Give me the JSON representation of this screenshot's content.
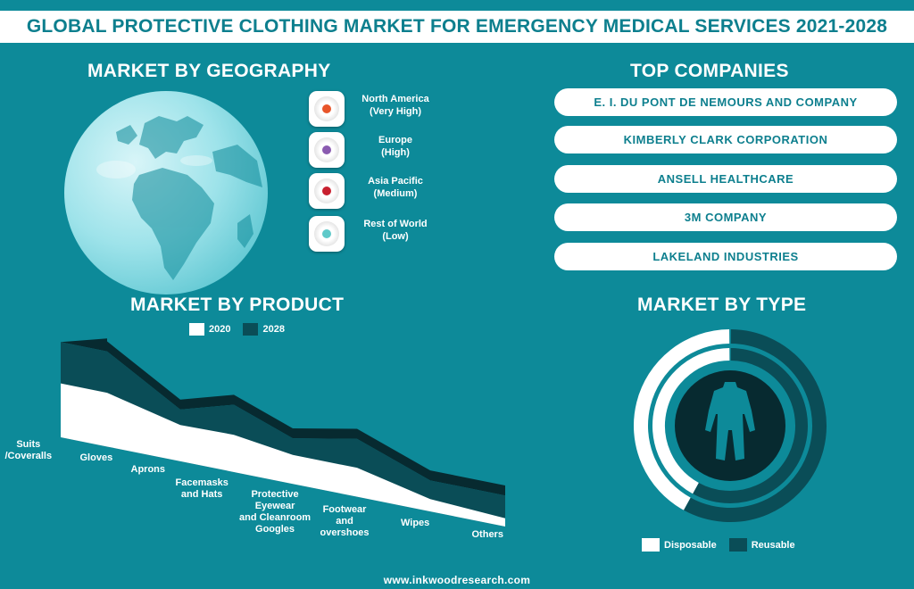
{
  "title": "GLOBAL PROTECTIVE CLOTHING MARKET FOR EMERGENCY MEDICAL SERVICES 2021-2028",
  "colors": {
    "background": "#0d8a99",
    "dark_teal": "#0a4d57",
    "darkest": "#072a30",
    "white": "#ffffff",
    "title_text": "#0d7f8e"
  },
  "geography": {
    "title": "MARKET BY GEOGRAPHY",
    "icon": "globe-icon",
    "regions": [
      {
        "name": "North America",
        "level": "(Very High)",
        "color": "#e8552a"
      },
      {
        "name": "Europe",
        "level": "(High)",
        "color": "#8a5bb0"
      },
      {
        "name": "Asia Pacific",
        "level": "(Medium)",
        "color": "#c8202f"
      },
      {
        "name": "Rest of World",
        "level": "(Low)",
        "color": "#5fc9c9"
      }
    ]
  },
  "companies": {
    "title": "TOP COMPANIES",
    "items": [
      "E. I. DU PONT DE NEMOURS AND COMPANY",
      "KIMBERLY CLARK CORPORATION",
      "ANSELL HEALTHCARE",
      "3M COMPANY",
      "LAKELAND INDUSTRIES"
    ]
  },
  "product": {
    "title": "MARKET BY PRODUCT",
    "legend": [
      "2020",
      "2028"
    ],
    "category_labels": [
      [
        "Suits",
        "/Coveralls"
      ],
      [
        "Gloves"
      ],
      [
        "Aprons"
      ],
      [
        "Facemasks",
        "and Hats"
      ],
      [
        "Protective",
        "Eyewear",
        "and Cleanroom",
        "Googles"
      ],
      [
        "Footwear",
        "and",
        "overshoes"
      ],
      [
        "Wipes"
      ],
      [
        "Others"
      ]
    ]
  },
  "type": {
    "title": "MARKET BY TYPE",
    "icon": "coverall-icon",
    "legend": [
      "Disposable",
      "Reusable"
    ]
  },
  "chart_data": [
    {
      "type": "area",
      "title": "MARKET BY PRODUCT",
      "categories": [
        "Suits /Coveralls",
        "Gloves",
        "Aprons",
        "Facemasks and Hats",
        "Protective Eyewear and Cleanroom Googles",
        "Footwear and overshoes",
        "Wipes",
        "Others"
      ],
      "series": [
        {
          "name": "2020",
          "values": [
            52,
            52,
            35,
            36,
            28,
            28,
            12,
            8
          ]
        },
        {
          "name": "2028",
          "values": [
            92,
            92,
            50,
            65,
            44,
            56,
            30,
            30
          ]
        }
      ],
      "legend": "top-center",
      "axes": "none"
    },
    {
      "type": "donut",
      "title": "MARKET BY TYPE",
      "categories": [
        "Disposable",
        "Reusable"
      ],
      "series": [
        {
          "name": "Disposable",
          "values": [
            0.42,
            0.42
          ]
        },
        {
          "name": "Reusable",
          "values": [
            0.58,
            0.58
          ]
        }
      ],
      "rings": 2,
      "legend": "bottom-center"
    }
  ],
  "footer": "www.inkwoodresearch.com"
}
